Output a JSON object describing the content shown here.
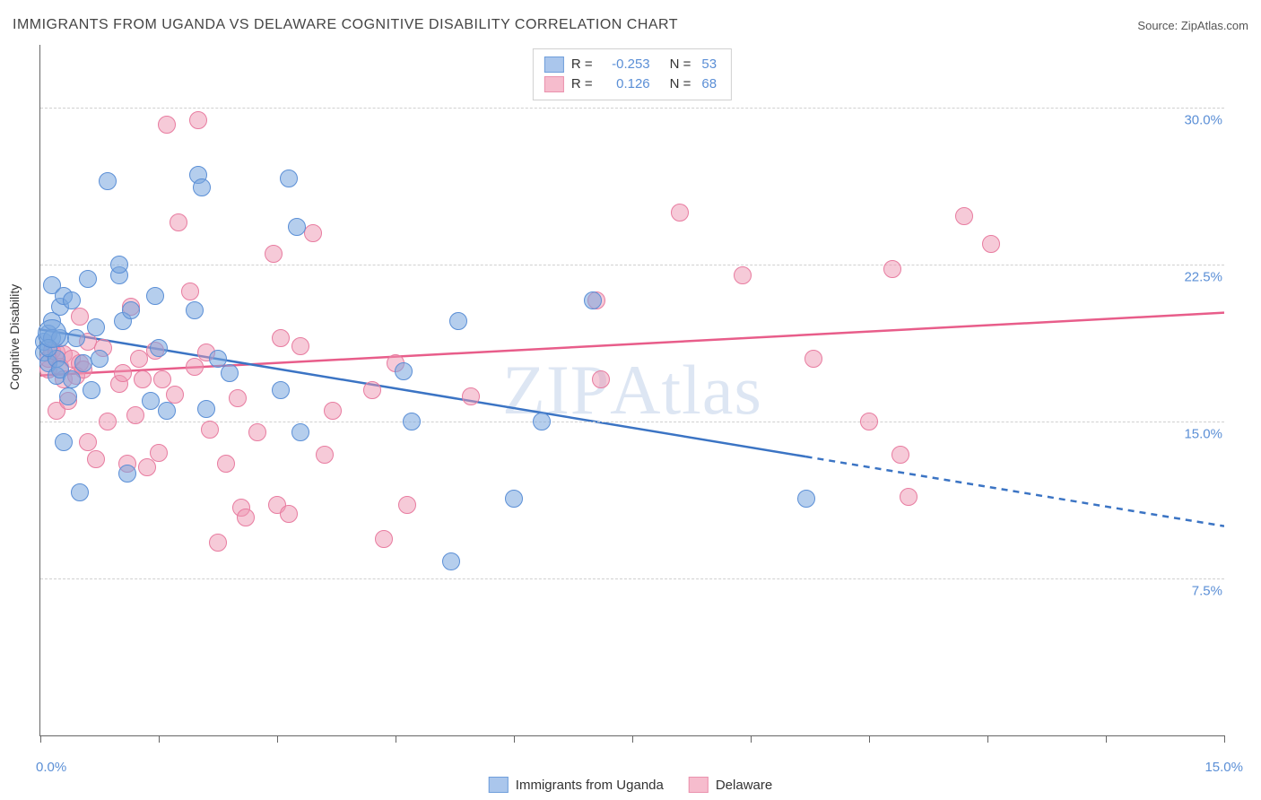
{
  "title": "IMMIGRANTS FROM UGANDA VS DELAWARE COGNITIVE DISABILITY CORRELATION CHART",
  "source_label": "Source:",
  "source_name": "ZipAtlas.com",
  "y_axis_title": "Cognitive Disability",
  "watermark_a": "ZIP",
  "watermark_b": "Atlas",
  "x": {
    "min": 0.0,
    "max": 15.0,
    "label_min": "0.0%",
    "label_max": "15.0%",
    "ticks_pct": [
      0,
      10,
      20,
      30,
      40,
      50,
      60,
      70,
      80,
      90,
      100
    ]
  },
  "y": {
    "min": 0.0,
    "max": 33.0,
    "gridlines": [
      {
        "value": 7.5,
        "label": "7.5%"
      },
      {
        "value": 15.0,
        "label": "15.0%"
      },
      {
        "value": 22.5,
        "label": "22.5%"
      },
      {
        "value": 30.0,
        "label": "30.0%"
      }
    ]
  },
  "legend_top": [
    {
      "swatch_fill": "#aac6ec",
      "swatch_border": "#6f9edb",
      "r_label": "R =",
      "r_value": "-0.253",
      "n_label": "N =",
      "n_value": "53"
    },
    {
      "swatch_fill": "#f6bccd",
      "swatch_border": "#ea92ae",
      "r_label": "R =",
      "r_value": "0.126",
      "n_label": "N =",
      "n_value": "68"
    }
  ],
  "legend_bottom": [
    {
      "swatch_fill": "#aac6ec",
      "swatch_border": "#6f9edb",
      "label": "Immigrants from Uganda"
    },
    {
      "swatch_fill": "#f6bccd",
      "swatch_border": "#ea92ae",
      "label": "Delaware"
    }
  ],
  "series": {
    "blue": {
      "point_fill": "rgba(120,165,222,0.55)",
      "point_stroke": "#5b8fd6",
      "point_radius": 9,
      "trend": {
        "y_at_xmin": 19.4,
        "y_at_xmax": 10.0,
        "solid_until_x": 9.7,
        "color": "#3b74c4",
        "width": 2.5
      },
      "points": [
        [
          0.05,
          18.8
        ],
        [
          0.05,
          18.3
        ],
        [
          0.1,
          19.2
        ],
        [
          0.1,
          17.8
        ],
        [
          0.15,
          19.8
        ],
        [
          0.15,
          21.5
        ],
        [
          0.15,
          19.0
        ],
        [
          0.2,
          17.2
        ],
        [
          0.2,
          18.0
        ],
        [
          0.25,
          20.5
        ],
        [
          0.25,
          19.0
        ],
        [
          0.25,
          17.5
        ],
        [
          0.3,
          14.0
        ],
        [
          0.3,
          21.0
        ],
        [
          0.4,
          17.0
        ],
        [
          0.4,
          20.8
        ],
        [
          0.45,
          19.0
        ],
        [
          0.5,
          11.6
        ],
        [
          0.55,
          17.8
        ],
        [
          0.6,
          21.8
        ],
        [
          0.65,
          16.5
        ],
        [
          0.7,
          19.5
        ],
        [
          0.75,
          18.0
        ],
        [
          0.85,
          26.5
        ],
        [
          1.0,
          22.0
        ],
        [
          1.0,
          22.5
        ],
        [
          1.05,
          19.8
        ],
        [
          1.1,
          12.5
        ],
        [
          1.15,
          20.3
        ],
        [
          1.4,
          16.0
        ],
        [
          1.45,
          21.0
        ],
        [
          1.5,
          18.5
        ],
        [
          1.6,
          15.5
        ],
        [
          1.95,
          20.3
        ],
        [
          2.0,
          26.8
        ],
        [
          2.05,
          26.2
        ],
        [
          2.1,
          15.6
        ],
        [
          2.25,
          18.0
        ],
        [
          2.4,
          17.3
        ],
        [
          3.05,
          16.5
        ],
        [
          3.15,
          26.6
        ],
        [
          3.25,
          24.3
        ],
        [
          3.3,
          14.5
        ],
        [
          4.6,
          17.4
        ],
        [
          4.7,
          15.0
        ],
        [
          5.2,
          8.3
        ],
        [
          5.3,
          19.8
        ],
        [
          6.0,
          11.3
        ],
        [
          6.35,
          15.0
        ],
        [
          7.0,
          20.8
        ],
        [
          9.7,
          11.3
        ],
        [
          0.1,
          18.5
        ],
        [
          0.35,
          16.2
        ]
      ],
      "big_point": {
        "x": 0.15,
        "y": 19.2,
        "r": 15
      }
    },
    "pink": {
      "point_fill": "rgba(238,150,178,0.50)",
      "point_stroke": "#e87ca0",
      "point_radius": 9,
      "trend": {
        "y_at_xmin": 17.2,
        "y_at_xmax": 20.2,
        "solid_until_x": 15.0,
        "color": "#e85d8a",
        "width": 2.5
      },
      "points": [
        [
          0.1,
          17.5
        ],
        [
          0.1,
          18.0
        ],
        [
          0.15,
          18.4
        ],
        [
          0.2,
          18.3
        ],
        [
          0.2,
          15.5
        ],
        [
          0.25,
          17.6
        ],
        [
          0.3,
          17.0
        ],
        [
          0.3,
          18.2
        ],
        [
          0.35,
          16.0
        ],
        [
          0.4,
          18.0
        ],
        [
          0.45,
          17.2
        ],
        [
          0.5,
          17.8
        ],
        [
          0.5,
          20.0
        ],
        [
          0.55,
          17.5
        ],
        [
          0.6,
          18.8
        ],
        [
          0.6,
          14.0
        ],
        [
          0.7,
          13.2
        ],
        [
          0.8,
          18.5
        ],
        [
          0.85,
          15.0
        ],
        [
          1.0,
          16.8
        ],
        [
          1.05,
          17.3
        ],
        [
          1.1,
          13.0
        ],
        [
          1.15,
          20.5
        ],
        [
          1.2,
          15.3
        ],
        [
          1.25,
          18.0
        ],
        [
          1.3,
          17.0
        ],
        [
          1.35,
          12.8
        ],
        [
          1.45,
          18.4
        ],
        [
          1.5,
          13.5
        ],
        [
          1.55,
          17.0
        ],
        [
          1.6,
          29.2
        ],
        [
          1.7,
          16.3
        ],
        [
          1.75,
          24.5
        ],
        [
          1.9,
          21.2
        ],
        [
          1.95,
          17.6
        ],
        [
          2.0,
          29.4
        ],
        [
          2.1,
          18.3
        ],
        [
          2.15,
          14.6
        ],
        [
          2.25,
          9.2
        ],
        [
          2.35,
          13.0
        ],
        [
          2.5,
          16.1
        ],
        [
          2.55,
          10.9
        ],
        [
          2.6,
          10.4
        ],
        [
          2.75,
          14.5
        ],
        [
          2.95,
          23.0
        ],
        [
          3.0,
          11.0
        ],
        [
          3.05,
          19.0
        ],
        [
          3.15,
          10.6
        ],
        [
          3.3,
          18.6
        ],
        [
          3.45,
          24.0
        ],
        [
          3.6,
          13.4
        ],
        [
          3.7,
          15.5
        ],
        [
          4.2,
          16.5
        ],
        [
          4.35,
          9.4
        ],
        [
          4.5,
          17.8
        ],
        [
          4.65,
          11.0
        ],
        [
          5.45,
          16.2
        ],
        [
          7.05,
          20.8
        ],
        [
          7.1,
          17.0
        ],
        [
          8.1,
          25.0
        ],
        [
          8.9,
          22.0
        ],
        [
          9.8,
          18.0
        ],
        [
          10.5,
          15.0
        ],
        [
          10.9,
          13.4
        ],
        [
          11.0,
          11.4
        ],
        [
          11.7,
          24.8
        ],
        [
          12.05,
          23.5
        ],
        [
          10.8,
          22.3
        ]
      ]
    }
  }
}
